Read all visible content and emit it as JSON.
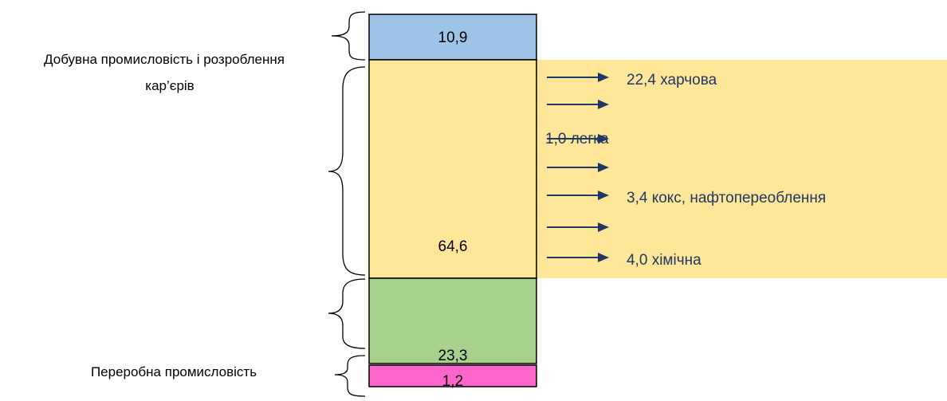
{
  "labels": {
    "top_left": [
      "Добувна промисловість і розроблення",
      "кар’єрів"
    ],
    "bottom_left": "Переробна промисловість"
  },
  "segments": [
    {
      "id": "mining",
      "value": "10,9",
      "color": "#9dc3e6"
    },
    {
      "id": "processing",
      "value": "64,6",
      "color": "#ffe699"
    },
    {
      "id": "energy",
      "value": "23,3",
      "color": "#a9d18e"
    },
    {
      "id": "water",
      "value": "1,2",
      "color": "#ff66cc"
    }
  ],
  "breakdown": {
    "panel_color": "#ffe699",
    "arrow_color": "#1f3864",
    "items": [
      {
        "label": "22,4 харчова"
      },
      {
        "label": ""
      },
      {
        "label": "1,0 легка"
      },
      {
        "label": ""
      },
      {
        "label": "3,4 кокс, нафтопереоблення"
      },
      {
        "label": ""
      },
      {
        "label": "4,0 хімічна"
      }
    ]
  }
}
